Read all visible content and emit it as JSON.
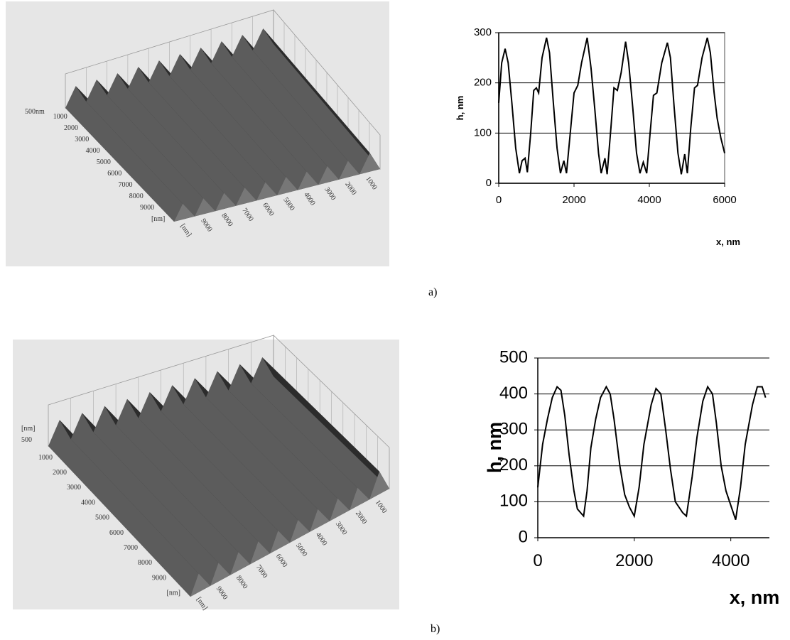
{
  "surface_plots": [
    {
      "z_labels": [
        "500nm"
      ],
      "y_labels": [
        "1000",
        "2000",
        "3000",
        "4000",
        "5000",
        "6000",
        "7000",
        "8000",
        "9000",
        "[nm]"
      ],
      "x_labels": [
        "[nm]",
        "9000",
        "8000",
        "7000",
        "6000",
        "5000",
        "4000",
        "3000",
        "2000",
        "1000"
      ]
    },
    {
      "z_labels": [
        "[nm]",
        "500"
      ],
      "y_labels": [
        "1000",
        "2000",
        "3000",
        "4000",
        "5000",
        "6000",
        "7000",
        "8000",
        "9000",
        "[nm]"
      ],
      "x_labels": [
        "[nm]",
        "9000",
        "8000",
        "7000",
        "6000",
        "5000",
        "4000",
        "3000",
        "2000",
        "1000"
      ]
    }
  ],
  "panel_labels": [
    "a)",
    "b)"
  ],
  "chart_data": [
    {
      "type": "line",
      "x_label": "x, nm",
      "y_label": "h, nm",
      "color": "#000000",
      "grid": true,
      "xlim": [
        0,
        6000
      ],
      "ylim": [
        0,
        300
      ],
      "xticks": [
        0,
        2000,
        4000,
        6000
      ],
      "yticks": [
        0,
        100,
        200,
        300
      ],
      "x": [
        0,
        80,
        170,
        250,
        350,
        450,
        550,
        620,
        700,
        760,
        850,
        930,
        1000,
        1060,
        1150,
        1270,
        1350,
        1450,
        1550,
        1640,
        1730,
        1800,
        1900,
        2000,
        2100,
        2200,
        2350,
        2450,
        2550,
        2650,
        2720,
        2820,
        2880,
        2980,
        3060,
        3150,
        3250,
        3370,
        3450,
        3560,
        3660,
        3750,
        3840,
        3930,
        4020,
        4110,
        4200,
        4330,
        4480,
        4560,
        4660,
        4760,
        4850,
        4940,
        5010,
        5100,
        5200,
        5280,
        5400,
        5540,
        5620,
        5720,
        5800,
        5900,
        6000
      ],
      "values": [
        160,
        240,
        268,
        240,
        160,
        70,
        20,
        45,
        50,
        22,
        100,
        185,
        190,
        180,
        250,
        290,
        260,
        160,
        70,
        20,
        45,
        20,
        100,
        180,
        195,
        240,
        290,
        230,
        150,
        60,
        20,
        50,
        18,
        110,
        190,
        185,
        220,
        282,
        240,
        150,
        60,
        20,
        42,
        20,
        100,
        175,
        180,
        240,
        280,
        250,
        150,
        60,
        18,
        58,
        20,
        110,
        190,
        195,
        250,
        290,
        260,
        180,
        130,
        90,
        60
      ]
    },
    {
      "type": "line",
      "x_label": "x, nm",
      "y_label": "h, nm",
      "color": "#000000",
      "grid": true,
      "xlim": [
        0,
        4800
      ],
      "ylim": [
        0,
        500
      ],
      "xticks": [
        0,
        2000,
        4000
      ],
      "yticks": [
        0,
        100,
        200,
        300,
        400,
        500
      ],
      "x": [
        0,
        100,
        200,
        300,
        400,
        480,
        560,
        650,
        750,
        820,
        950,
        1020,
        1100,
        1200,
        1300,
        1420,
        1500,
        1580,
        1700,
        1800,
        1900,
        2000,
        2100,
        2200,
        2350,
        2450,
        2550,
        2650,
        2750,
        2850,
        3000,
        3080,
        3200,
        3300,
        3420,
        3520,
        3620,
        3700,
        3800,
        3900,
        4000,
        4100,
        4200,
        4300,
        4450,
        4550,
        4650,
        4720
      ],
      "values": [
        140,
        260,
        330,
        390,
        420,
        410,
        340,
        230,
        130,
        80,
        60,
        130,
        250,
        330,
        390,
        420,
        400,
        330,
        200,
        120,
        85,
        60,
        140,
        260,
        370,
        415,
        400,
        300,
        190,
        100,
        70,
        60,
        170,
        280,
        380,
        420,
        400,
        320,
        200,
        130,
        90,
        50,
        140,
        260,
        370,
        420,
        420,
        390
      ]
    }
  ]
}
